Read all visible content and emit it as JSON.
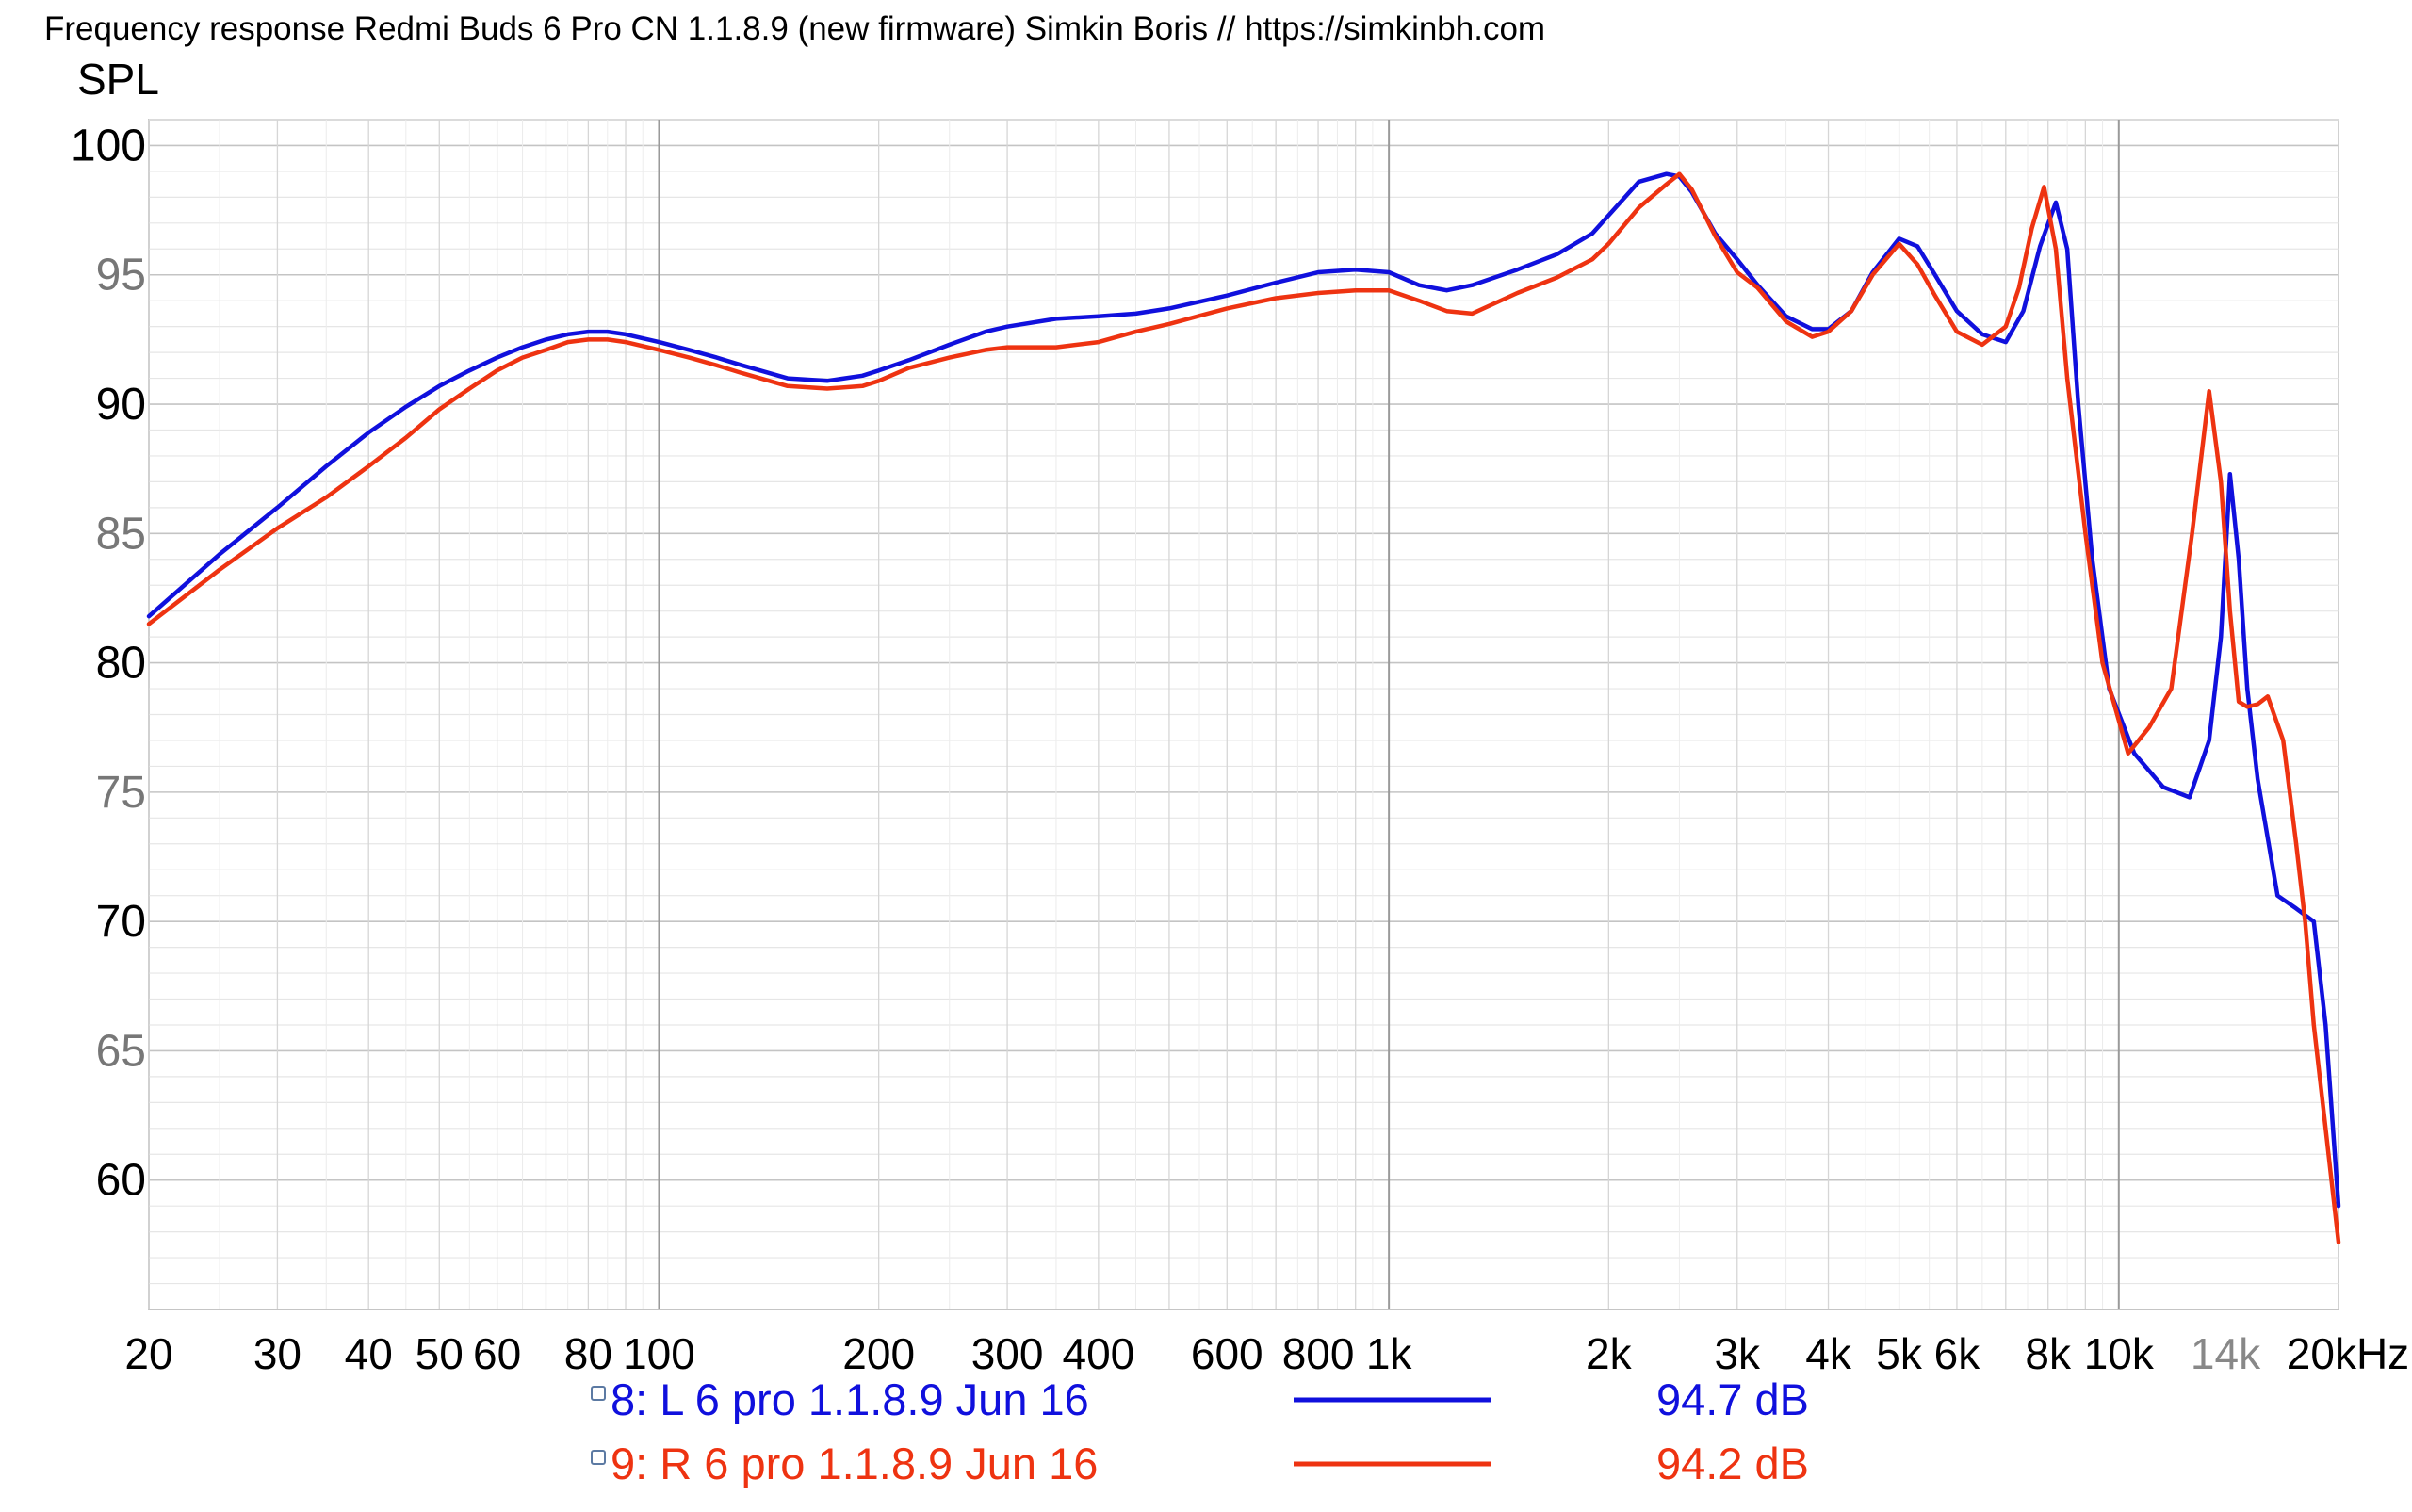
{
  "chart_data": {
    "type": "line",
    "title": "Frequency response Redmi Buds 6 Pro CN 1.1.8.9 (new firmware) Simkin Boris // https://simkinbh.com",
    "ylabel": "SPL",
    "xlabel": "",
    "x_scale": "log",
    "xlim": [
      20,
      20000
    ],
    "ylim": [
      55,
      101
    ],
    "grid": true,
    "y_ticks": [
      {
        "value": 100,
        "label": "100",
        "color": "#000000"
      },
      {
        "value": 95,
        "label": "95",
        "color": "#777777"
      },
      {
        "value": 90,
        "label": "90",
        "color": "#000000"
      },
      {
        "value": 85,
        "label": "85",
        "color": "#777777"
      },
      {
        "value": 80,
        "label": "80",
        "color": "#000000"
      },
      {
        "value": 75,
        "label": "75",
        "color": "#777777"
      },
      {
        "value": 70,
        "label": "70",
        "color": "#000000"
      },
      {
        "value": 65,
        "label": "65",
        "color": "#777777"
      },
      {
        "value": 60,
        "label": "60",
        "color": "#000000"
      }
    ],
    "x_ticks": [
      {
        "value": 20,
        "label": "20",
        "color": "#000000"
      },
      {
        "value": 30,
        "label": "30",
        "color": "#000000"
      },
      {
        "value": 40,
        "label": "40",
        "color": "#000000"
      },
      {
        "value": 50,
        "label": "50",
        "color": "#000000"
      },
      {
        "value": 60,
        "label": "60",
        "color": "#000000"
      },
      {
        "value": 80,
        "label": "80",
        "color": "#000000"
      },
      {
        "value": 100,
        "label": "100",
        "color": "#000000"
      },
      {
        "value": 200,
        "label": "200",
        "color": "#000000"
      },
      {
        "value": 300,
        "label": "300",
        "color": "#000000"
      },
      {
        "value": 400,
        "label": "400",
        "color": "#000000"
      },
      {
        "value": 600,
        "label": "600",
        "color": "#000000"
      },
      {
        "value": 800,
        "label": "800",
        "color": "#000000"
      },
      {
        "value": 1000,
        "label": "1k",
        "color": "#000000"
      },
      {
        "value": 2000,
        "label": "2k",
        "color": "#000000"
      },
      {
        "value": 3000,
        "label": "3k",
        "color": "#000000"
      },
      {
        "value": 4000,
        "label": "4k",
        "color": "#000000"
      },
      {
        "value": 5000,
        "label": "5k",
        "color": "#000000"
      },
      {
        "value": 6000,
        "label": "6k",
        "color": "#000000"
      },
      {
        "value": 8000,
        "label": "8k",
        "color": "#000000"
      },
      {
        "value": 10000,
        "label": "10k",
        "color": "#000000"
      },
      {
        "value": 14000,
        "label": "14k",
        "color": "#888888"
      },
      {
        "value": 20000,
        "label": "20kHz",
        "color": "#000000"
      }
    ],
    "series": [
      {
        "name": "8: L 6 pro 1.1.8.9 Jun 16",
        "level": "94.7 dB",
        "color": "#1010dd",
        "x": [
          20,
          25,
          30,
          35,
          40,
          45,
          50,
          55,
          60,
          65,
          70,
          75,
          80,
          85,
          90,
          100,
          110,
          120,
          130,
          150,
          170,
          190,
          200,
          220,
          250,
          280,
          300,
          350,
          400,
          450,
          500,
          600,
          700,
          800,
          900,
          1000,
          1100,
          1200,
          1300,
          1500,
          1700,
          1900,
          2000,
          2200,
          2400,
          2500,
          2600,
          2800,
          3000,
          3200,
          3500,
          3800,
          4000,
          4300,
          4600,
          5000,
          5300,
          5600,
          6000,
          6500,
          7000,
          7400,
          7800,
          8200,
          8500,
          8800,
          9200,
          9700,
          10500,
          11500,
          12500,
          13300,
          13800,
          14200,
          14600,
          15000,
          15500,
          16500,
          17500,
          18500,
          19200,
          20000
        ],
        "values": [
          81.8,
          84.2,
          86.0,
          87.6,
          88.9,
          89.9,
          90.7,
          91.3,
          91.8,
          92.2,
          92.5,
          92.7,
          92.8,
          92.8,
          92.7,
          92.4,
          92.1,
          91.8,
          91.5,
          91.0,
          90.9,
          91.1,
          91.3,
          91.7,
          92.3,
          92.8,
          93.0,
          93.3,
          93.4,
          93.5,
          93.7,
          94.2,
          94.7,
          95.1,
          95.2,
          95.1,
          94.6,
          94.4,
          94.6,
          95.2,
          95.8,
          96.6,
          97.3,
          98.6,
          98.9,
          98.8,
          98.2,
          96.6,
          95.6,
          94.6,
          93.4,
          92.9,
          92.9,
          93.6,
          95.1,
          96.4,
          96.1,
          95.0,
          93.6,
          92.7,
          92.4,
          93.6,
          96.1,
          97.8,
          96.0,
          90.0,
          84.0,
          79.0,
          76.5,
          75.2,
          74.8,
          77.0,
          81.0,
          87.3,
          84.0,
          79.0,
          75.5,
          71.0,
          70.5,
          70.0,
          66.0,
          59.0
        ]
      },
      {
        "name": "9: R 6 pro 1.1.8.9 Jun 16",
        "level": "94.2 dB",
        "color": "#ee3311",
        "x": [
          20,
          25,
          30,
          35,
          40,
          45,
          50,
          55,
          60,
          65,
          70,
          75,
          80,
          85,
          90,
          100,
          110,
          120,
          130,
          150,
          170,
          190,
          200,
          220,
          250,
          280,
          300,
          350,
          400,
          450,
          500,
          600,
          700,
          800,
          900,
          1000,
          1100,
          1200,
          1300,
          1500,
          1700,
          1900,
          2000,
          2200,
          2400,
          2500,
          2600,
          2800,
          3000,
          3200,
          3500,
          3800,
          4000,
          4300,
          4600,
          5000,
          5300,
          5600,
          6000,
          6500,
          7000,
          7300,
          7600,
          7900,
          8200,
          8500,
          9000,
          9500,
          10300,
          11000,
          11800,
          12600,
          13300,
          13800,
          14200,
          14600,
          15000,
          15500,
          16000,
          16800,
          17500,
          18000,
          18500,
          19200,
          20000
        ],
        "values": [
          81.5,
          83.6,
          85.2,
          86.4,
          87.6,
          88.7,
          89.8,
          90.6,
          91.3,
          91.8,
          92.1,
          92.4,
          92.5,
          92.5,
          92.4,
          92.1,
          91.8,
          91.5,
          91.2,
          90.7,
          90.6,
          90.7,
          90.9,
          91.4,
          91.8,
          92.1,
          92.2,
          92.2,
          92.4,
          92.8,
          93.1,
          93.7,
          94.1,
          94.3,
          94.4,
          94.4,
          94.0,
          93.6,
          93.5,
          94.3,
          94.9,
          95.6,
          96.2,
          97.6,
          98.5,
          98.9,
          98.3,
          96.5,
          95.1,
          94.5,
          93.2,
          92.6,
          92.8,
          93.6,
          95.0,
          96.2,
          95.4,
          94.2,
          92.8,
          92.3,
          93.0,
          94.5,
          96.8,
          98.4,
          96.0,
          91.0,
          85.0,
          80.0,
          76.5,
          77.5,
          79.0,
          85.0,
          90.5,
          87.0,
          82.0,
          78.5,
          78.3,
          78.4,
          78.7,
          77.0,
          73.0,
          70.0,
          66.0,
          62.0,
          57.6
        ]
      }
    ]
  }
}
